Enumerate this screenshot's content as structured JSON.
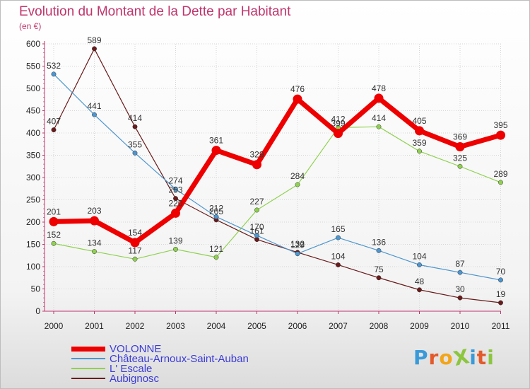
{
  "header": {
    "title": "Evolution du Montant de la Dette par Habitant",
    "subtitle": "(en €)"
  },
  "logo": {
    "text": "ProXiti",
    "colors": [
      "#3a9ad9",
      "#e35a2b",
      "#f2a51a",
      "#8cc63f",
      "#3a9ad9",
      "#e35a2b",
      "#8cc63f"
    ]
  },
  "chart_data": {
    "type": "line",
    "title": "Evolution du Montant de la Dette par Habitant",
    "subtitle": "(en €)",
    "x": [
      "2000",
      "2001",
      "2002",
      "2003",
      "2004",
      "2005",
      "2006",
      "2007",
      "2008",
      "2009",
      "2010",
      "2011"
    ],
    "ylim": [
      0,
      600
    ],
    "yticks": [
      0,
      50,
      100,
      150,
      200,
      250,
      300,
      350,
      400,
      450,
      500,
      550,
      600
    ],
    "grid": true,
    "legend_position": "bottom-left",
    "series": [
      {
        "name": "VOLONNE",
        "color": "#ee0000",
        "values": [
          201,
          203,
          154,
          220,
          361,
          329,
          476,
          399,
          478,
          405,
          369,
          395
        ],
        "labels": [
          "201",
          "203",
          "154",
          "220",
          "361",
          "329",
          "476",
          "399",
          "478",
          "405",
          "369",
          "395"
        ]
      },
      {
        "name": "Château-Arnoux-Saint-Auban",
        "color": "#4d96cf",
        "values": [
          532,
          441,
          355,
          274,
          212,
          170,
          129,
          165,
          136,
          104,
          87,
          70
        ],
        "labels": [
          "532",
          "441",
          "355",
          "274",
          "212",
          "170",
          "129",
          "165",
          "136",
          "104",
          "87",
          "70"
        ]
      },
      {
        "name": "L' Escale",
        "color": "#8fd14f",
        "values": [
          152,
          134,
          117,
          139,
          121,
          227,
          284,
          412,
          414,
          359,
          325,
          289
        ],
        "labels": [
          "152",
          "134",
          "117",
          "139",
          "121",
          "227",
          "284",
          "412",
          "414",
          "359",
          "325",
          "289"
        ]
      },
      {
        "name": "Aubignosc",
        "color": "#6a1a1a",
        "values": [
          407,
          589,
          414,
          253,
          205,
          161,
          132,
          104,
          75,
          48,
          30,
          19
        ],
        "labels": [
          "407",
          "589",
          "414",
          "253",
          "205",
          "161",
          "132",
          "104",
          "75",
          "48",
          "30",
          "19"
        ]
      }
    ]
  }
}
